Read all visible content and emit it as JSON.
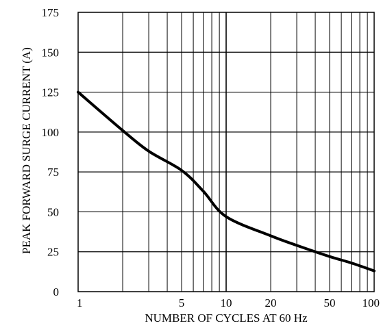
{
  "chart_data": {
    "type": "line",
    "xlabel": "NUMBER OF CYCLES AT 60 Hz",
    "ylabel": "PEAK FORWARD SURGE CURRENT (A)",
    "xscale": "log",
    "xlim": [
      1,
      100
    ],
    "ylim": [
      0,
      175
    ],
    "grid": true,
    "x_tick_labels": [
      "1",
      "5",
      "10",
      "20",
      "50",
      "100"
    ],
    "y_tick_labels": [
      "0",
      "25",
      "50",
      "75",
      "100",
      "125",
      "150",
      "175"
    ],
    "series": [
      {
        "x": [
          1,
          2,
          3,
          5,
          7,
          10,
          20,
          30,
          50,
          70,
          100
        ],
        "y": [
          125,
          101,
          88,
          76,
          63,
          47,
          35,
          29,
          22,
          18,
          13
        ]
      }
    ]
  }
}
